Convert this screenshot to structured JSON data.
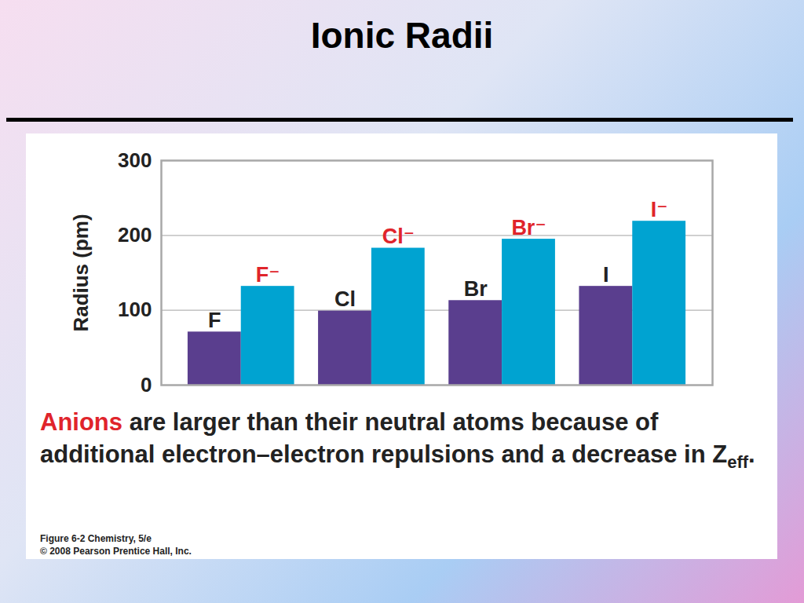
{
  "chart_data": {
    "type": "bar",
    "title": "Ionic Radii",
    "y_label": "Radius (pm)",
    "categories": [
      "F",
      "F⁻",
      "Cl",
      "Cl⁻",
      "Br",
      "Br⁻",
      "I",
      "I⁻"
    ],
    "values": [
      71,
      132,
      99,
      183,
      113,
      195,
      132,
      219
    ],
    "colors": [
      "#5a3e8e",
      "#00a3d1",
      "#5a3e8e",
      "#00a3d1",
      "#5a3e8e",
      "#00a3d1",
      "#5a3e8e",
      "#00a3d1"
    ],
    "ylim": [
      0,
      300
    ],
    "yticks": [
      0,
      100,
      200,
      300
    ],
    "grid": true,
    "tick_labels": "y",
    "caption": [
      "Anions",
      " are larger than their neutral atoms because of additional electron–electron repulsions and a decrease in Z",
      "eff",
      "."
    ],
    "credit": [
      "Figure 6-2 Chemistry, 5/e",
      "© 2008 Pearson Prentice Hall, Inc."
    ]
  }
}
